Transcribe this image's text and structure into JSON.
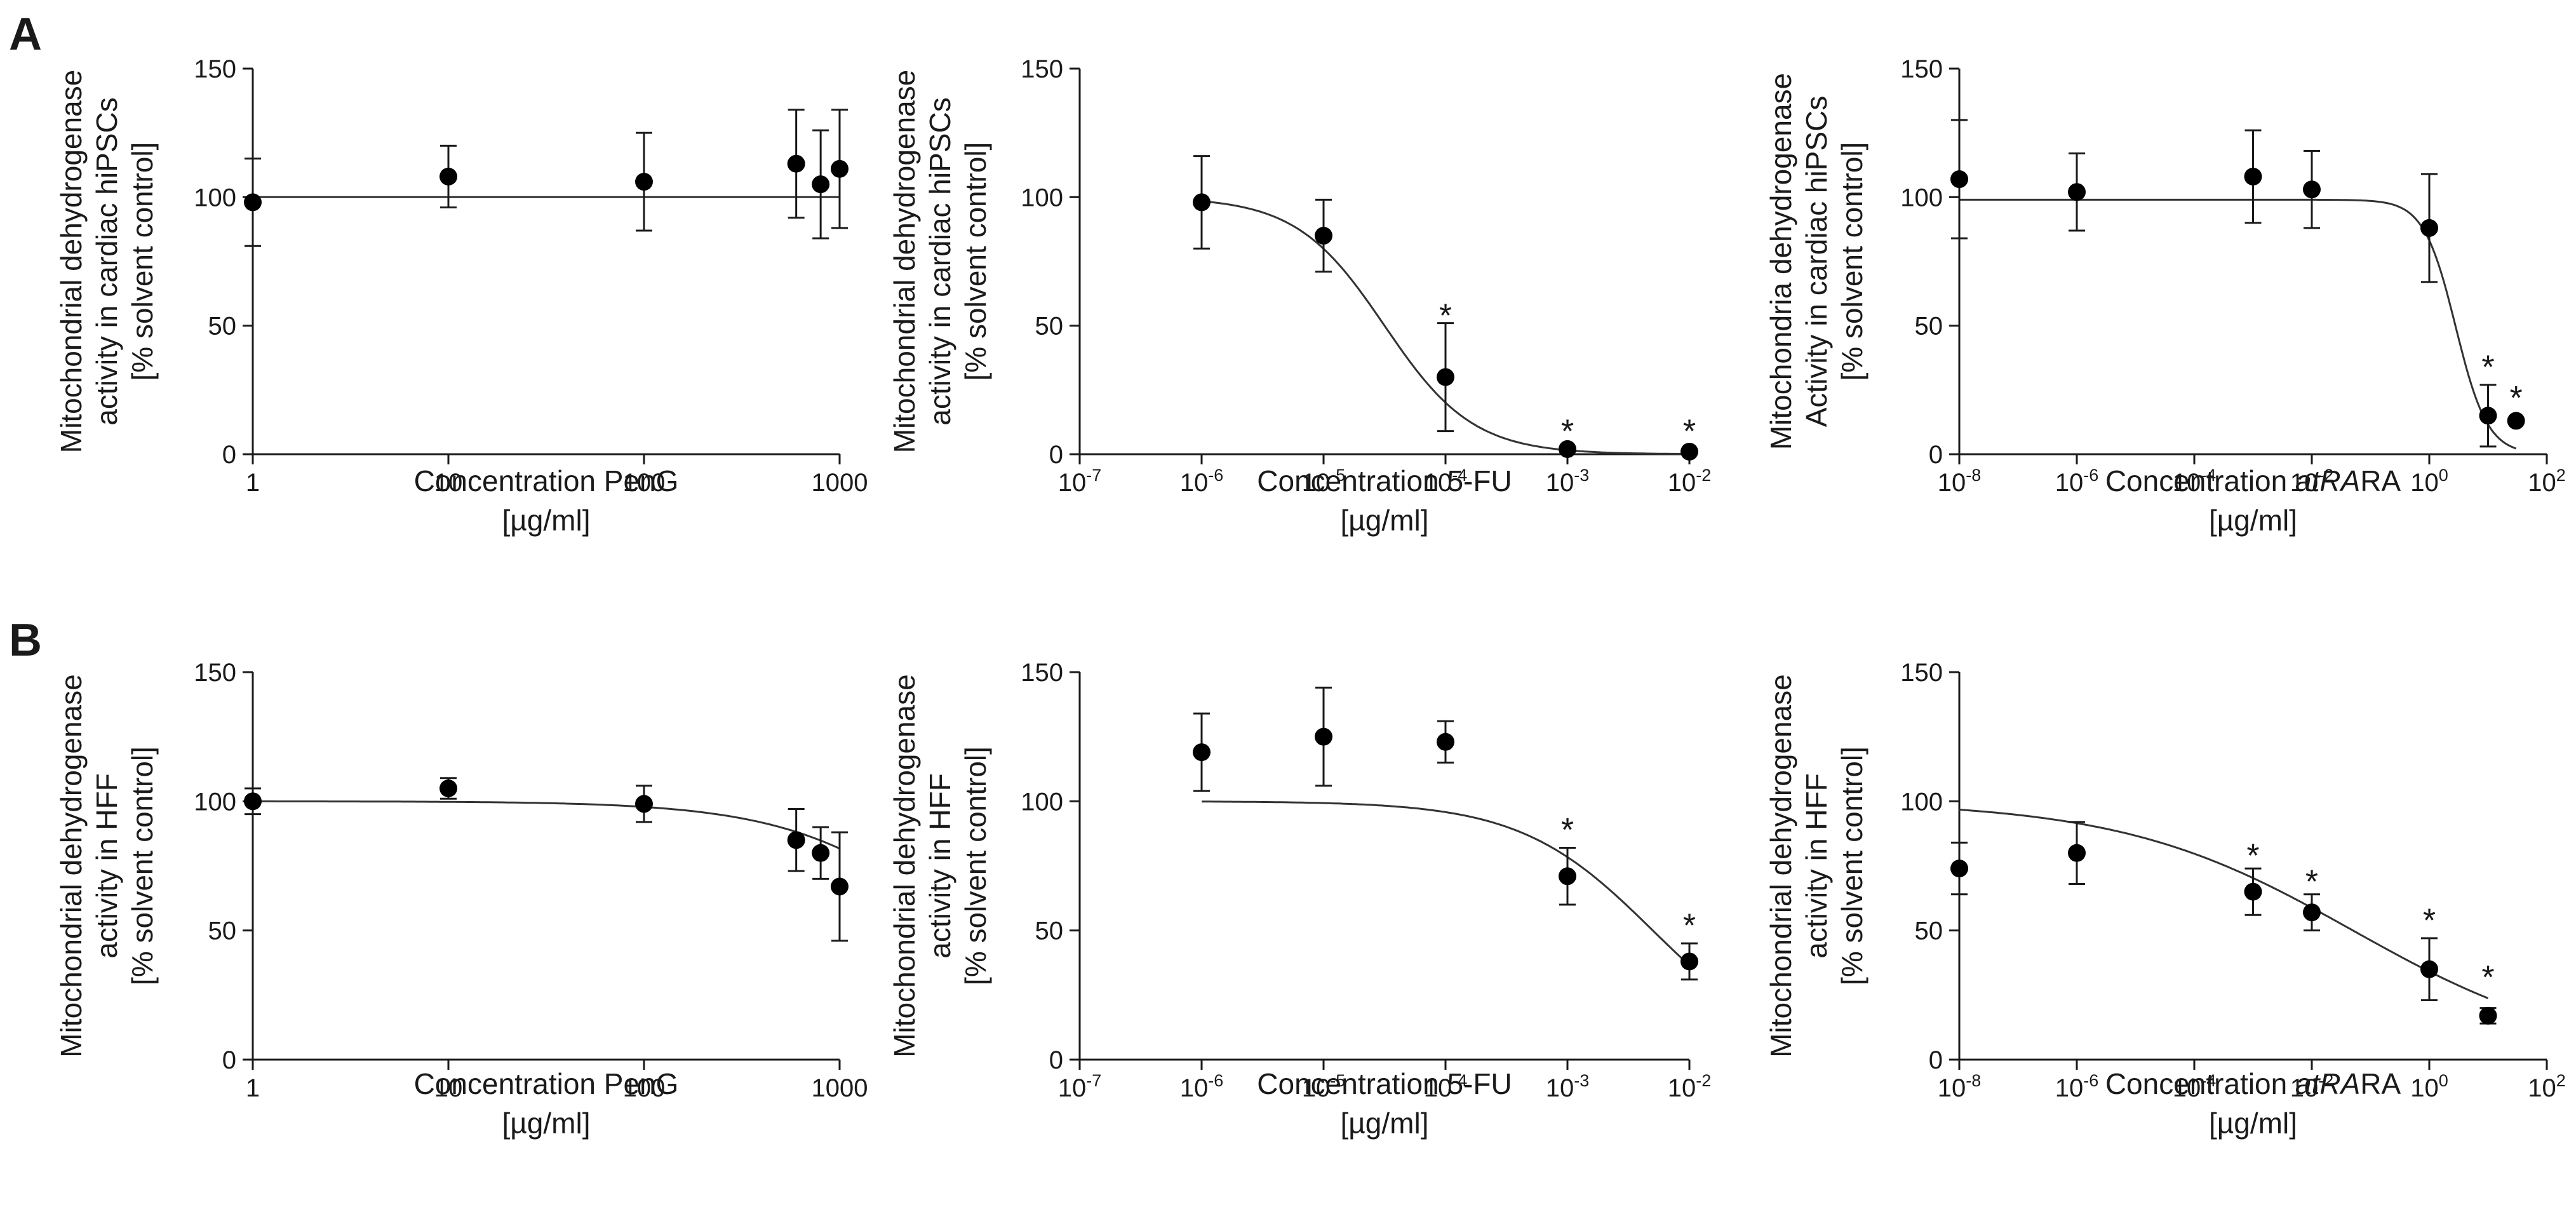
{
  "panel_letters": [
    "A",
    "B"
  ],
  "chart_data": [
    {
      "type": "scatter",
      "row": "A",
      "xscale": "log",
      "xlim": [
        1,
        1000
      ],
      "ylim": [
        0,
        150
      ],
      "title": "",
      "ylabel": [
        "Mitochondrial dehydrogenase",
        "activity in cardiac hiPSCs",
        "[% solvent control]"
      ],
      "xlabel": [
        "Concentration PenG",
        "[µg/ml]"
      ],
      "xticks": [
        {
          "v": 1,
          "label": "1"
        },
        {
          "v": 10,
          "label": "10"
        },
        {
          "v": 100,
          "label": "100"
        },
        {
          "v": 1000,
          "label": "1000"
        }
      ],
      "yticks": [
        0,
        50,
        100,
        150
      ],
      "points": [
        {
          "x": 1,
          "y": 98,
          "err": 17
        },
        {
          "x": 10,
          "y": 108,
          "err": 12
        },
        {
          "x": 100,
          "y": 106,
          "err": 19
        },
        {
          "x": 600,
          "y": 113,
          "err": 21
        },
        {
          "x": 800,
          "y": 105,
          "err": 21
        },
        {
          "x": 1000,
          "y": 111,
          "err": 23
        }
      ],
      "stars": [],
      "curve": {
        "top": 100,
        "bottom": 100,
        "logEC50": 0,
        "hill": 1,
        "from": 1,
        "to": 1000
      }
    },
    {
      "type": "scatter",
      "row": "A",
      "xscale": "log",
      "xlim": [
        1e-07,
        0.01
      ],
      "ylim": [
        0,
        150
      ],
      "title": "",
      "ylabel": [
        "Mitochondrial dehydrogenase",
        "activity in cardiac hiPSCs",
        "[% solvent control]"
      ],
      "xlabel": [
        "Concentration 5-FU",
        "[µg/ml]"
      ],
      "xticks": [
        {
          "v": 1e-07,
          "base": "10",
          "exp": "-7"
        },
        {
          "v": 1e-06,
          "base": "10",
          "exp": "-6"
        },
        {
          "v": 1e-05,
          "base": "10",
          "exp": "-5"
        },
        {
          "v": 0.0001,
          "base": "10",
          "exp": "-4"
        },
        {
          "v": 0.001,
          "base": "10",
          "exp": "-3"
        },
        {
          "v": 0.01,
          "base": "10",
          "exp": "-2"
        }
      ],
      "yticks": [
        0,
        50,
        100,
        150
      ],
      "points": [
        {
          "x": 1e-06,
          "y": 98,
          "err": 18
        },
        {
          "x": 1e-05,
          "y": 85,
          "err": 14
        },
        {
          "x": 0.0001,
          "y": 30,
          "err": 21
        },
        {
          "x": 0.001,
          "y": 2,
          "err": 0
        },
        {
          "x": 0.01,
          "y": 1,
          "err": 0
        }
      ],
      "stars": [
        {
          "x": 0.0001,
          "y": 55,
          "label": "*"
        },
        {
          "x": 0.001,
          "y": 10,
          "label": "*"
        },
        {
          "x": 0.01,
          "y": 10,
          "label": "*"
        }
      ],
      "curve": {
        "top": 100,
        "bottom": 0,
        "logEC50": -4.5,
        "hill": 1.2,
        "from": 1e-06,
        "to": 0.01
      }
    },
    {
      "type": "scatter",
      "row": "A",
      "xscale": "log",
      "xlim": [
        1e-08,
        100
      ],
      "ylim": [
        0,
        150
      ],
      "title": "",
      "ylabel": [
        "Mitochondria  dehydrogenase",
        "Activity in cardiac hiPSCs",
        "[% solvent control]"
      ],
      "xlabel": [
        "Concentration ",
        "atRA",
        "[µg/ml]"
      ],
      "xticks": [
        {
          "v": 1e-08,
          "base": "10",
          "exp": "-8"
        },
        {
          "v": 1e-06,
          "base": "10",
          "exp": "-6"
        },
        {
          "v": 0.0001,
          "base": "10",
          "exp": "-4"
        },
        {
          "v": 0.01,
          "base": "10",
          "exp": "-2"
        },
        {
          "v": 1,
          "base": "10",
          "exp": "0"
        },
        {
          "v": 100,
          "base": "10",
          "exp": "2"
        }
      ],
      "yticks": [
        0,
        50,
        100,
        150
      ],
      "points": [
        {
          "x": 1e-08,
          "y": 107,
          "err": 23
        },
        {
          "x": 1e-06,
          "y": 102,
          "err": 15
        },
        {
          "x": 0.001,
          "y": 108,
          "err": 18
        },
        {
          "x": 0.01,
          "y": 103,
          "err": 15
        },
        {
          "x": 1,
          "y": 88,
          "err": 21
        },
        {
          "x": 10,
          "y": 15,
          "err": 12
        },
        {
          "x": 30,
          "y": 13,
          "err": 0
        }
      ],
      "stars": [
        {
          "x": 10,
          "y": 35,
          "label": "*"
        },
        {
          "x": 30,
          "y": 23,
          "label": "*"
        }
      ],
      "curve": {
        "top": 99,
        "bottom": 0,
        "logEC50": 0.45,
        "hill": 1.6,
        "from": 1e-08,
        "to": 30
      }
    },
    {
      "type": "scatter",
      "row": "B",
      "xscale": "log",
      "xlim": [
        1,
        1000
      ],
      "ylim": [
        0,
        150
      ],
      "title": "",
      "ylabel": [
        "Mitochondrial dehydrogenase",
        "activity in HFF",
        "[% solvent control]"
      ],
      "xlabel": [
        "Concentration PenG",
        "[µg/ml]"
      ],
      "xticks": [
        {
          "v": 1,
          "label": "1"
        },
        {
          "v": 10,
          "label": "10"
        },
        {
          "v": 100,
          "label": "100"
        },
        {
          "v": 1000,
          "label": "1000"
        }
      ],
      "yticks": [
        0,
        50,
        100,
        150
      ],
      "points": [
        {
          "x": 1,
          "y": 100,
          "err": 5
        },
        {
          "x": 10,
          "y": 105,
          "err": 4
        },
        {
          "x": 100,
          "y": 99,
          "err": 7
        },
        {
          "x": 600,
          "y": 85,
          "err": 12
        },
        {
          "x": 800,
          "y": 80,
          "err": 10
        },
        {
          "x": 1000,
          "y": 67,
          "err": 21
        }
      ],
      "stars": [],
      "curve": {
        "top": 100,
        "bottom": 0,
        "logEC50": 3.65,
        "hill": 1.0,
        "from": 1,
        "to": 1000
      }
    },
    {
      "type": "scatter",
      "row": "B",
      "xscale": "log",
      "xlim": [
        1e-07,
        0.01
      ],
      "ylim": [
        0,
        150
      ],
      "title": "",
      "ylabel": [
        "Mitochondrial dehydrogenase",
        "activity in HFF",
        "[% solvent control]"
      ],
      "xlabel": [
        "Concentration 5-FU",
        "[µg/ml]"
      ],
      "xticks": [
        {
          "v": 1e-07,
          "base": "10",
          "exp": "-7"
        },
        {
          "v": 1e-06,
          "base": "10",
          "exp": "-6"
        },
        {
          "v": 1e-05,
          "base": "10",
          "exp": "-5"
        },
        {
          "v": 0.0001,
          "base": "10",
          "exp": "-4"
        },
        {
          "v": 0.001,
          "base": "10",
          "exp": "-3"
        },
        {
          "v": 0.01,
          "base": "10",
          "exp": "-2"
        }
      ],
      "yticks": [
        0,
        50,
        100,
        150
      ],
      "points": [
        {
          "x": 1e-06,
          "y": 119,
          "err": 15
        },
        {
          "x": 1e-05,
          "y": 125,
          "err": 19
        },
        {
          "x": 0.0001,
          "y": 123,
          "err": 8
        },
        {
          "x": 0.001,
          "y": 71,
          "err": 11
        },
        {
          "x": 0.01,
          "y": 38,
          "err": 7
        }
      ],
      "stars": [
        {
          "x": 0.001,
          "y": 90,
          "label": "*"
        },
        {
          "x": 0.01,
          "y": 53,
          "label": "*"
        }
      ],
      "curve": {
        "top": 100,
        "bottom": 0,
        "logEC50": -2.3,
        "hill": 0.8,
        "from": 1e-06,
        "to": 0.01
      }
    },
    {
      "type": "scatter",
      "row": "B",
      "xscale": "log",
      "xlim": [
        1e-08,
        100
      ],
      "ylim": [
        0,
        150
      ],
      "title": "",
      "ylabel": [
        "Mitochondrial dehydrogenase",
        "activity in HFF",
        "[% solvent control]"
      ],
      "xlabel": [
        "Concentration ",
        "atRA",
        "[µg/ml]"
      ],
      "xticks": [
        {
          "v": 1e-08,
          "base": "10",
          "exp": "-8"
        },
        {
          "v": 1e-06,
          "base": "10",
          "exp": "-6"
        },
        {
          "v": 0.0001,
          "base": "10",
          "exp": "-4"
        },
        {
          "v": 0.01,
          "base": "10",
          "exp": "-2"
        },
        {
          "v": 1,
          "base": "10",
          "exp": "0"
        },
        {
          "v": 100,
          "base": "10",
          "exp": "2"
        }
      ],
      "yticks": [
        0,
        50,
        100,
        150
      ],
      "points": [
        {
          "x": 1e-08,
          "y": 74,
          "err": 10
        },
        {
          "x": 1e-06,
          "y": 80,
          "err": 12
        },
        {
          "x": 0.001,
          "y": 65,
          "err": 9
        },
        {
          "x": 0.01,
          "y": 57,
          "err": 7
        },
        {
          "x": 1,
          "y": 35,
          "err": 12
        },
        {
          "x": 10,
          "y": 17,
          "err": 3
        }
      ],
      "stars": [
        {
          "x": 0.001,
          "y": 80,
          "label": "*"
        },
        {
          "x": 0.01,
          "y": 70,
          "label": "*"
        },
        {
          "x": 1,
          "y": 55,
          "label": "*"
        },
        {
          "x": 10,
          "y": 33,
          "label": "*"
        }
      ],
      "curve": {
        "top": 100,
        "bottom": 0,
        "logEC50": -1.3,
        "hill": 0.22,
        "from": 1e-08,
        "to": 10
      }
    }
  ]
}
